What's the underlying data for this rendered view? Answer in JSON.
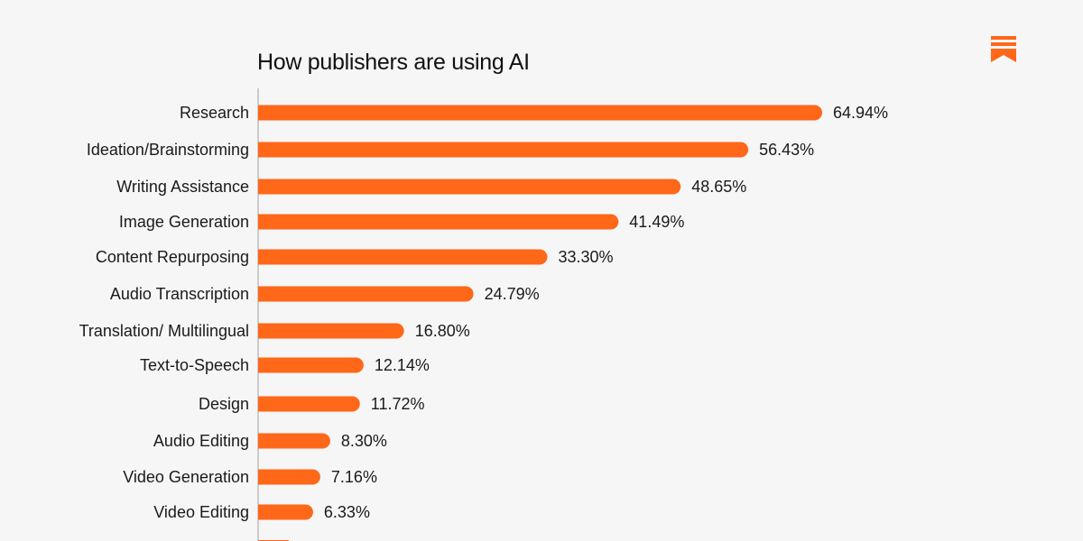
{
  "chart_data": {
    "type": "bar",
    "orientation": "horizontal",
    "title": "How publishers are using AI",
    "xlabel": "",
    "ylabel": "",
    "value_suffix": "%",
    "xlim": [
      0,
      70
    ],
    "grid": false,
    "legend": "none",
    "categories": [
      "Research",
      "Ideation/Brainstorming",
      "Writing Assistance",
      "Image Generation",
      "Content Repurposing",
      "Audio Transcription",
      "Translation/ Multilingual",
      "Text-to-Speech",
      "Design",
      "Audio Editing",
      "Video Generation",
      "Video Editing"
    ],
    "values": [
      64.94,
      56.43,
      48.65,
      41.49,
      33.3,
      24.79,
      16.8,
      12.14,
      11.72,
      8.3,
      7.16,
      6.33
    ],
    "value_labels": [
      "64.94%",
      "56.43%",
      "48.65%",
      "41.49%",
      "33.30%",
      "24.79%",
      "16.80%",
      "12.14%",
      "11.72%",
      "8.30%",
      "7.16%",
      "6.33%"
    ]
  },
  "colors": {
    "bar": "#ff6719",
    "axis": "#bdbdbd",
    "text": "#1a1a1a",
    "background": "#f6f6f6",
    "logo": "#ff6719"
  },
  "logo": {
    "icon": "bookmark-logo-icon"
  }
}
